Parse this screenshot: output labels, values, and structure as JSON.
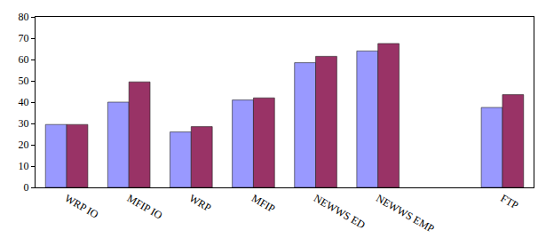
{
  "chart_data": {
    "type": "bar",
    "categories": [
      "WRP IO",
      "MFIP IO",
      "WRP",
      "MFIP",
      "NEWWS ED",
      "NEWWS EMP",
      null,
      "FTP"
    ],
    "series": [
      {
        "color": "#9999ff",
        "values": [
          29.5,
          40,
          26,
          41,
          58.5,
          64,
          null,
          37.5
        ]
      },
      {
        "color": "#993366",
        "values": [
          29.5,
          49.5,
          28.5,
          42,
          61.5,
          67.5,
          null,
          43.5
        ]
      }
    ],
    "ylim": [
      0,
      80
    ],
    "yticks": [
      0,
      10,
      20,
      30,
      40,
      50,
      60,
      70,
      80
    ],
    "grid": false
  }
}
